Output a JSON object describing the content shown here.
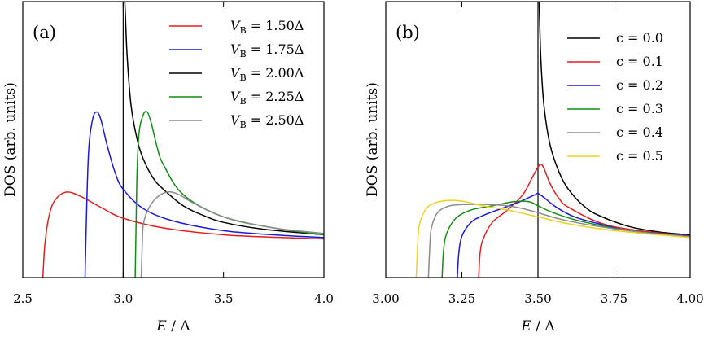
{
  "chart_data": [
    {
      "type": "line",
      "panel_label": "(a)",
      "xlabel_italic": "E",
      "xlabel_rest": " / Δ",
      "ylabel": "DOS (arb. units)",
      "xlim": [
        2.5,
        4.0
      ],
      "ylim": [
        0,
        1
      ],
      "xticks": [
        2.5,
        3.0,
        3.5,
        4.0
      ],
      "xtick_labels": [
        "2.5",
        "3.0",
        "3.5",
        "4.0"
      ],
      "legend_position": "top-right",
      "vline_x": 3.0,
      "legend": [
        {
          "sym": "V",
          "sub": "B",
          "rest": " = 1.50Δ"
        },
        {
          "sym": "V",
          "sub": "B",
          "rest": " = 1.75Δ"
        },
        {
          "sym": "V",
          "sub": "B",
          "rest": " = 2.00Δ"
        },
        {
          "sym": "V",
          "sub": "B",
          "rest": " = 2.25Δ"
        },
        {
          "sym": "V",
          "sub": "B",
          "rest": " = 2.50Δ"
        }
      ],
      "series": [
        {
          "name": "V_B = 1.50Δ",
          "color": "#e02020",
          "x": [
            2.6,
            2.61,
            2.63,
            2.66,
            2.72,
            2.8,
            2.9,
            3.0,
            3.2,
            3.5,
            3.8,
            4.0
          ],
          "y": [
            0.0,
            0.12,
            0.22,
            0.28,
            0.31,
            0.29,
            0.25,
            0.215,
            0.18,
            0.155,
            0.145,
            0.14
          ]
        },
        {
          "name": "V_B = 1.75Δ",
          "color": "#1a1ad8",
          "x": [
            2.81,
            2.82,
            2.83,
            2.85,
            2.87,
            2.89,
            2.92,
            2.96,
            3.0,
            3.1,
            3.25,
            3.5,
            3.75,
            4.0
          ],
          "y": [
            0.0,
            0.3,
            0.48,
            0.58,
            0.6,
            0.57,
            0.48,
            0.38,
            0.32,
            0.25,
            0.205,
            0.17,
            0.155,
            0.145
          ]
        },
        {
          "name": "V_B = 2.00Δ",
          "color": "#000000",
          "x": [
            3.005,
            3.01,
            3.02,
            3.04,
            3.07,
            3.1,
            3.15,
            3.2,
            3.3,
            3.4,
            3.5,
            3.7,
            4.0
          ],
          "y": [
            1.05,
            0.97,
            0.8,
            0.62,
            0.5,
            0.43,
            0.36,
            0.32,
            0.26,
            0.225,
            0.2,
            0.175,
            0.155
          ]
        },
        {
          "name": "V_B = 2.25Δ",
          "color": "#148c14",
          "x": [
            3.06,
            3.065,
            3.07,
            3.08,
            3.1,
            3.12,
            3.14,
            3.17,
            3.2,
            3.3,
            3.5,
            3.75,
            4.0
          ],
          "y": [
            0.0,
            0.22,
            0.4,
            0.53,
            0.59,
            0.6,
            0.56,
            0.47,
            0.41,
            0.3,
            0.22,
            0.18,
            0.155
          ]
        },
        {
          "name": "V_B = 2.50Δ",
          "color": "#8c8c8c",
          "x": [
            3.09,
            3.095,
            3.1,
            3.12,
            3.16,
            3.22,
            3.28,
            3.35,
            3.5,
            3.75,
            4.0
          ],
          "y": [
            0.0,
            0.12,
            0.19,
            0.24,
            0.285,
            0.31,
            0.3,
            0.27,
            0.22,
            0.18,
            0.16
          ]
        }
      ]
    },
    {
      "type": "line",
      "panel_label": "(b)",
      "xlabel_italic": "E",
      "xlabel_rest": " / Δ",
      "ylabel": "DOS (arb. units)",
      "xlim": [
        3.0,
        4.0
      ],
      "ylim": [
        0,
        1
      ],
      "xticks": [
        3.0,
        3.25,
        3.5,
        3.75,
        4.0
      ],
      "xtick_labels": [
        "3.00",
        "3.25",
        "3.50",
        "3.75",
        "4.00"
      ],
      "legend_position": "top-right",
      "vline_x": 3.5,
      "legend": [
        {
          "sym": "",
          "sub": "",
          "rest": "c = 0.0"
        },
        {
          "sym": "",
          "sub": "",
          "rest": "c = 0.1"
        },
        {
          "sym": "",
          "sub": "",
          "rest": "c = 0.2"
        },
        {
          "sym": "",
          "sub": "",
          "rest": "c = 0.3"
        },
        {
          "sym": "",
          "sub": "",
          "rest": "c = 0.4"
        },
        {
          "sym": "",
          "sub": "",
          "rest": "c = 0.5"
        }
      ],
      "series": [
        {
          "name": "c = 0.0",
          "color": "#000000",
          "x": [
            3.503,
            3.505,
            3.51,
            3.52,
            3.54,
            3.57,
            3.6,
            3.65,
            3.7,
            3.8,
            3.9,
            4.0
          ],
          "y": [
            1.05,
            0.95,
            0.78,
            0.62,
            0.48,
            0.38,
            0.32,
            0.26,
            0.225,
            0.185,
            0.165,
            0.155
          ]
        },
        {
          "name": "c = 0.1",
          "color": "#e02020",
          "x": [
            3.305,
            3.31,
            3.32,
            3.35,
            3.4,
            3.45,
            3.48,
            3.5,
            3.51,
            3.52,
            3.54,
            3.57,
            3.6,
            3.7,
            3.8,
            4.0
          ],
          "y": [
            0.0,
            0.09,
            0.14,
            0.2,
            0.245,
            0.3,
            0.36,
            0.4,
            0.41,
            0.395,
            0.34,
            0.285,
            0.255,
            0.2,
            0.175,
            0.15
          ]
        },
        {
          "name": "c = 0.2",
          "color": "#1a1ad8",
          "x": [
            3.235,
            3.24,
            3.25,
            3.28,
            3.32,
            3.38,
            3.43,
            3.47,
            3.49,
            3.5,
            3.52,
            3.56,
            3.62,
            3.7,
            3.8,
            4.0
          ],
          "y": [
            0.0,
            0.09,
            0.15,
            0.2,
            0.225,
            0.25,
            0.27,
            0.29,
            0.3,
            0.305,
            0.29,
            0.255,
            0.22,
            0.195,
            0.17,
            0.15
          ]
        },
        {
          "name": "c = 0.3",
          "color": "#148c14",
          "x": [
            3.185,
            3.19,
            3.2,
            3.23,
            3.28,
            3.35,
            3.42,
            3.47,
            3.5,
            3.55,
            3.62,
            3.7,
            3.8,
            4.0
          ],
          "y": [
            0.0,
            0.1,
            0.16,
            0.215,
            0.245,
            0.26,
            0.275,
            0.275,
            0.26,
            0.235,
            0.21,
            0.19,
            0.17,
            0.148
          ]
        },
        {
          "name": "c = 0.4",
          "color": "#8c8c8c",
          "x": [
            3.14,
            3.145,
            3.15,
            3.17,
            3.21,
            3.27,
            3.33,
            3.4,
            3.45,
            3.5,
            3.58,
            3.7,
            3.85,
            4.0
          ],
          "y": [
            0.0,
            0.12,
            0.18,
            0.235,
            0.26,
            0.265,
            0.265,
            0.26,
            0.25,
            0.235,
            0.21,
            0.185,
            0.163,
            0.148
          ]
        },
        {
          "name": "c = 0.5",
          "color": "#f0d020",
          "x": [
            3.1,
            3.105,
            3.11,
            3.13,
            3.16,
            3.21,
            3.26,
            3.32,
            3.4,
            3.5,
            3.6,
            3.75,
            4.0
          ],
          "y": [
            0.0,
            0.12,
            0.19,
            0.245,
            0.27,
            0.28,
            0.275,
            0.26,
            0.245,
            0.22,
            0.195,
            0.17,
            0.145
          ]
        }
      ]
    }
  ]
}
